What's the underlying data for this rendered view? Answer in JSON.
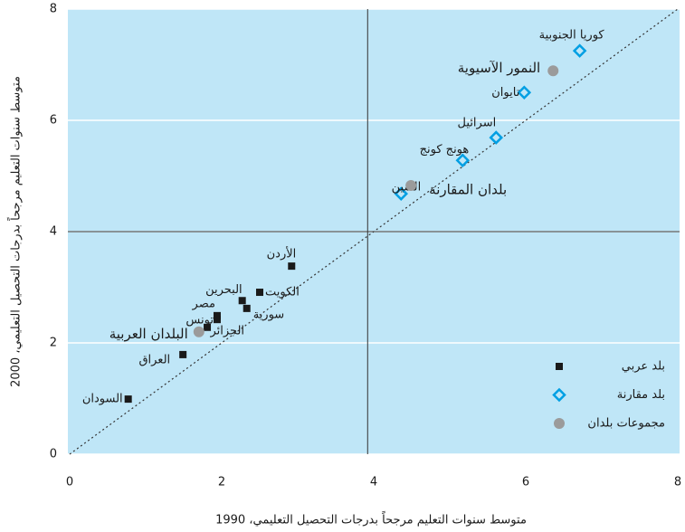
{
  "chart_data": {
    "type": "scatter",
    "x_label": "متوسط سنوات التعليم مرجحاً بدرجات التحصيل التعليمي، 1990",
    "y_label": "متوسط سنوات التعليم مرجحاً بدرجات التحصيل التعليمي، 2000",
    "xlim": [
      0,
      8
    ],
    "ylim": [
      0,
      8
    ],
    "xticks": [
      0,
      2,
      4,
      6,
      8
    ],
    "yticks": [
      0,
      2,
      4,
      6,
      8
    ],
    "grid": true,
    "reference_lines": {
      "x": 3.92,
      "y": 4
    },
    "diagonal": true,
    "legend": "lower right",
    "series": [
      {
        "name": "بلد عربي",
        "color": "#1a1a1a",
        "marker": "square",
        "labels": [
          "السودان",
          "العراق",
          "الجزائر",
          "تونس",
          "مصر",
          "سورية",
          "البحرين",
          "الكويت",
          "الأردن"
        ],
        "x": [
          0.77,
          1.49,
          1.81,
          1.94,
          1.94,
          2.33,
          2.27,
          2.5,
          2.92
        ],
        "values": [
          0.99,
          1.79,
          2.28,
          2.42,
          2.49,
          2.62,
          2.76,
          2.91,
          3.38
        ]
      },
      {
        "name": "بلد مقارنة",
        "color": "#009fe3",
        "marker": "diamond",
        "labels": [
          "الصين",
          "هونج كونج",
          "اسرائيل",
          "تايوان",
          "كوريا الجنوبية"
        ],
        "x": [
          4.36,
          5.17,
          5.61,
          5.98,
          6.71
        ],
        "values": [
          4.68,
          5.28,
          5.69,
          6.5,
          7.25
        ]
      },
      {
        "name": "مجموعات بلدان",
        "color": "#9b9b9b",
        "marker": "circle",
        "labels": [
          "البلدان العربية",
          "بلدان المقارنة",
          "النمور الآسيوية"
        ],
        "x": [
          1.7,
          4.49,
          6.36
        ],
        "values": [
          2.2,
          4.83,
          6.89
        ]
      }
    ]
  }
}
